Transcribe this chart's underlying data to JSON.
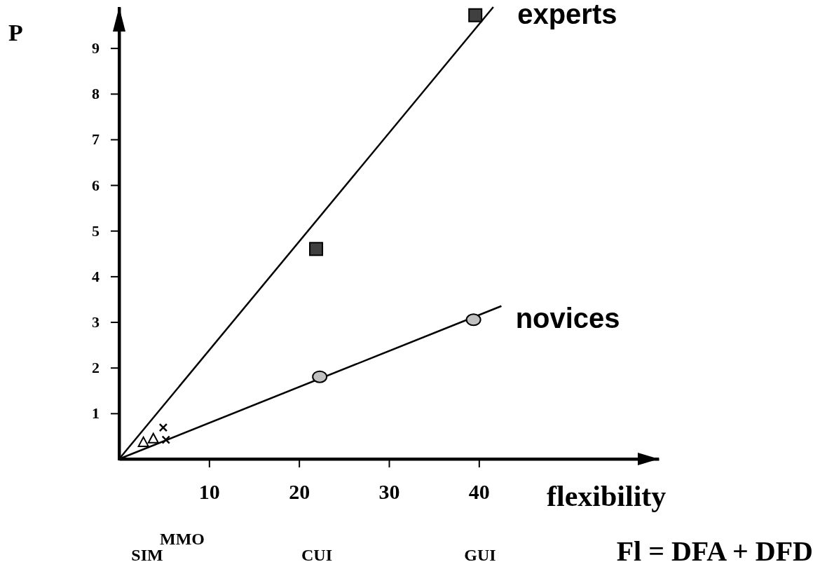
{
  "chart_data": {
    "type": "scatter",
    "xlabel": "flexibility",
    "ylabel": "P",
    "xlim": [
      0,
      60
    ],
    "ylim": [
      0,
      9.9
    ],
    "xticks": [
      10,
      20,
      30,
      40
    ],
    "yticks": [
      1,
      2,
      3,
      4,
      5,
      6,
      7,
      8,
      9
    ],
    "grid": false,
    "legend": false,
    "series": [
      {
        "type": "line",
        "color": "#000000",
        "x": [
          0,
          41.6
        ],
        "values": [
          0,
          9.9
        ],
        "marker": "none",
        "line_style": "solid"
      },
      {
        "type": "line",
        "color": "#000000",
        "x": [
          0,
          42.5
        ],
        "values": [
          0,
          3.35
        ],
        "marker": "none",
        "line_style": "solid"
      },
      {
        "name": "experts",
        "type": "scatter",
        "color": "#404040",
        "x": [
          21.9,
          39.6
        ],
        "values": [
          4.6,
          9.72
        ],
        "marker": "square"
      },
      {
        "name": "novices",
        "type": "scatter",
        "color": "#c0c0c0",
        "x": [
          22.3,
          39.4
        ],
        "values": [
          1.8,
          3.05
        ],
        "marker": "circle"
      },
      {
        "type": "scatter",
        "color": "#000000",
        "x": [
          2.7,
          3.8
        ],
        "values": [
          0.37,
          0.45
        ],
        "marker": "triangle"
      },
      {
        "type": "scatter",
        "color": "#000000",
        "x": [
          4.9,
          5.2
        ],
        "values": [
          0.69,
          0.42
        ],
        "marker": "cross"
      }
    ],
    "annotations": [
      "SIM",
      "MMO",
      "CUI",
      "GUI",
      "Fl = DFA + DFD"
    ]
  }
}
